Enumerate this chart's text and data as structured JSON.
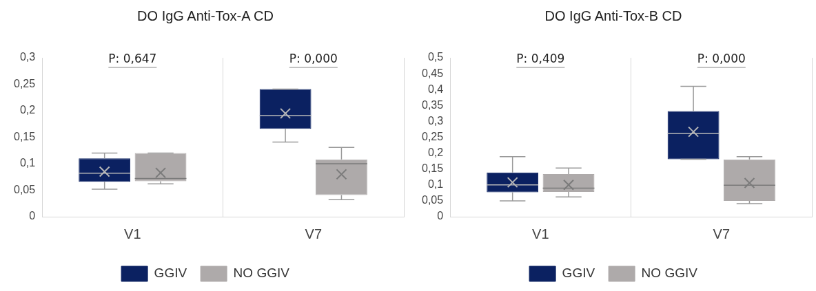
{
  "chart_data": [
    {
      "type": "box",
      "title": "DO IgG Anti-Tox-A CD",
      "categories": [
        "V1",
        "V7"
      ],
      "series": [
        {
          "name": "GGIV",
          "color": "#0b2161",
          "boxes": [
            {
              "low": 0.052,
              "q1": 0.066,
              "median": 0.082,
              "q3": 0.11,
              "high": 0.12,
              "mean": 0.085
            },
            {
              "low": 0.141,
              "q1": 0.166,
              "median": 0.191,
              "q3": 0.241,
              "high": 0.241,
              "mean": 0.195
            }
          ]
        },
        {
          "name": "NO GGIV",
          "color": "#aeaaaa",
          "boxes": [
            {
              "low": 0.062,
              "q1": 0.067,
              "median": 0.072,
              "q3": 0.12,
              "high": 0.12,
              "mean": 0.083
            },
            {
              "low": 0.032,
              "q1": 0.041,
              "median": 0.1,
              "q3": 0.108,
              "high": 0.131,
              "mean": 0.08
            }
          ]
        }
      ],
      "ylim": [
        0,
        0.3
      ],
      "yticks": [
        0,
        {
          "value": 0.05,
          "label": "0,05"
        },
        {
          "value": 0.1,
          "label": "0,1"
        },
        {
          "value": 0.15,
          "label": "0,15"
        },
        {
          "value": 0.2,
          "label": "0,2"
        },
        {
          "value": 0.25,
          "label": "0,25"
        },
        {
          "value": 0.3,
          "label": "0,3"
        }
      ],
      "annotations": [
        "P: 0,647",
        "P: 0,000"
      ],
      "grid": "x",
      "legend": "bottom"
    },
    {
      "type": "box",
      "title": "DO IgG Anti-Tox-B CD",
      "categories": [
        "V1",
        "V7"
      ],
      "series": [
        {
          "name": "GGIV",
          "color": "#0b2161",
          "boxes": [
            {
              "low": 0.05,
              "q1": 0.077,
              "median": 0.1,
              "q3": 0.139,
              "high": 0.189,
              "mean": 0.108
            },
            {
              "low": 0.181,
              "q1": 0.181,
              "median": 0.262,
              "q3": 0.332,
              "high": 0.41,
              "mean": 0.267
            }
          ]
        },
        {
          "name": "NO GGIV",
          "color": "#aeaaaa",
          "boxes": [
            {
              "low": 0.062,
              "q1": 0.078,
              "median": 0.09,
              "q3": 0.134,
              "high": 0.153,
              "mean": 0.1
            },
            {
              "low": 0.041,
              "q1": 0.05,
              "median": 0.099,
              "q3": 0.18,
              "high": 0.189,
              "mean": 0.106
            }
          ]
        }
      ],
      "ylim": [
        0,
        0.5
      ],
      "yticks": [
        0,
        {
          "value": 0.05,
          "label": "0,05"
        },
        {
          "value": 0.1,
          "label": "0,1"
        },
        {
          "value": 0.15,
          "label": "0,15"
        },
        {
          "value": 0.2,
          "label": "0,2"
        },
        {
          "value": 0.25,
          "label": "0,25"
        },
        {
          "value": 0.3,
          "label": "0,3"
        },
        {
          "value": 0.35,
          "label": "0,35"
        },
        {
          "value": 0.4,
          "label": "0,4"
        },
        {
          "value": 0.45,
          "label": "0,45"
        },
        {
          "value": 0.5,
          "label": "0,5"
        }
      ],
      "annotations": [
        "P: 0,409",
        "P: 0,000"
      ],
      "grid": "x",
      "legend": "bottom"
    }
  ]
}
